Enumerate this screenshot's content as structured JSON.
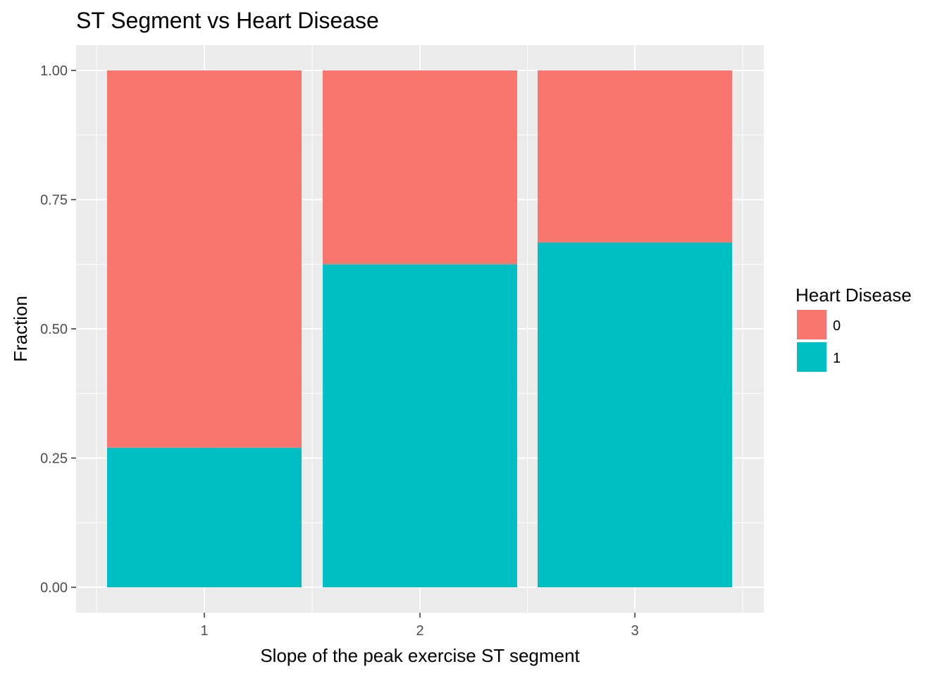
{
  "chart_data": {
    "type": "bar",
    "stacked": true,
    "title": "ST Segment vs Heart Disease",
    "xlabel": "Slope of the peak exercise ST segment",
    "ylabel": "Fraction",
    "categories": [
      "1",
      "2",
      "3"
    ],
    "ylim": [
      0,
      1
    ],
    "yticks": [
      "0.00",
      "0.25",
      "0.50",
      "0.75",
      "1.00"
    ],
    "grid": true,
    "legend": {
      "title": "Heart Disease",
      "position": "right"
    },
    "series": [
      {
        "name": "0",
        "color": "#F8766D",
        "values": [
          0.73,
          0.375,
          0.333
        ]
      },
      {
        "name": "1",
        "color": "#00BFC4",
        "values": [
          0.27,
          0.625,
          0.667
        ]
      }
    ]
  }
}
